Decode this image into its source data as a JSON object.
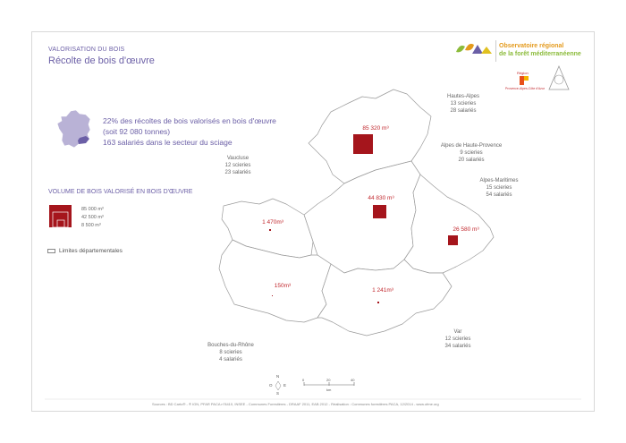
{
  "header": {
    "supertitle": "VALORISATION DU BOIS",
    "title": "Récolte de bois d'œuvre"
  },
  "logo": {
    "line1": "Observatoire régional",
    "line2": "de la forêt méditerranéenne",
    "partner1": "Région",
    "partner1_sub": "Provence-Alpes-Côte d'Azur"
  },
  "stats": {
    "line1": "22% des récoltes de bois valorisés en bois d'œuvre",
    "line2": "(soit 92 080 tonnes)",
    "line3": "163 salariés dans le secteur du sciage"
  },
  "legend": {
    "title": "VOLUME DE BOIS VALORISÉ EN BOIS D'ŒUVRE",
    "values": [
      "85 000 m³",
      "42 500 m³",
      "8 500 m³"
    ],
    "limits": "Limites départementales"
  },
  "departments": [
    {
      "name": "Hautes-Alpes",
      "scieries": "13 scieries",
      "salaries": "28 salariés",
      "volume": "85 320 m³",
      "volume_m3": 85320
    },
    {
      "name": "Alpes de Haute-Provence",
      "scieries": "9 scieries",
      "salaries": "20 salariés",
      "volume": "44 830 m³",
      "volume_m3": 44830
    },
    {
      "name": "Alpes-Maritimes",
      "scieries": "15 scieries",
      "salaries": "54 salariés",
      "volume": "26 580 m³",
      "volume_m3": 26580
    },
    {
      "name": "Vaucluse",
      "scieries": "12 scieries",
      "salaries": "23 salariés",
      "volume": "1 470m³",
      "volume_m3": 1470
    },
    {
      "name": "Bouches-du-Rhône",
      "scieries": "8 scieries",
      "salaries": "4 salariés",
      "volume": "150m³",
      "volume_m3": 150
    },
    {
      "name": "Var",
      "scieries": "12 scieries",
      "salaries": "34 salariés",
      "volume": "1 241m³",
      "volume_m3": 1241
    }
  ],
  "compass": {
    "n": "N",
    "s": "S",
    "e": "E",
    "o": "O"
  },
  "scale": {
    "ticks": [
      "0",
      "20",
      "40"
    ],
    "unit": "km"
  },
  "footer": "Sources : BD Carto® - ® IGN, PFAR PACA n°8410, INSEE - Communes Forestières - DRAAF 2011, EAB 2012 - Réalisation : Communes forestières PACA, 12/2014 - www.ofme.org",
  "colors": {
    "accent": "#6b5fa6",
    "volume": "#a5151c",
    "map_fill": "#ffffff",
    "map_stroke": "#9a9a9a",
    "france": "#b9b2d6"
  }
}
